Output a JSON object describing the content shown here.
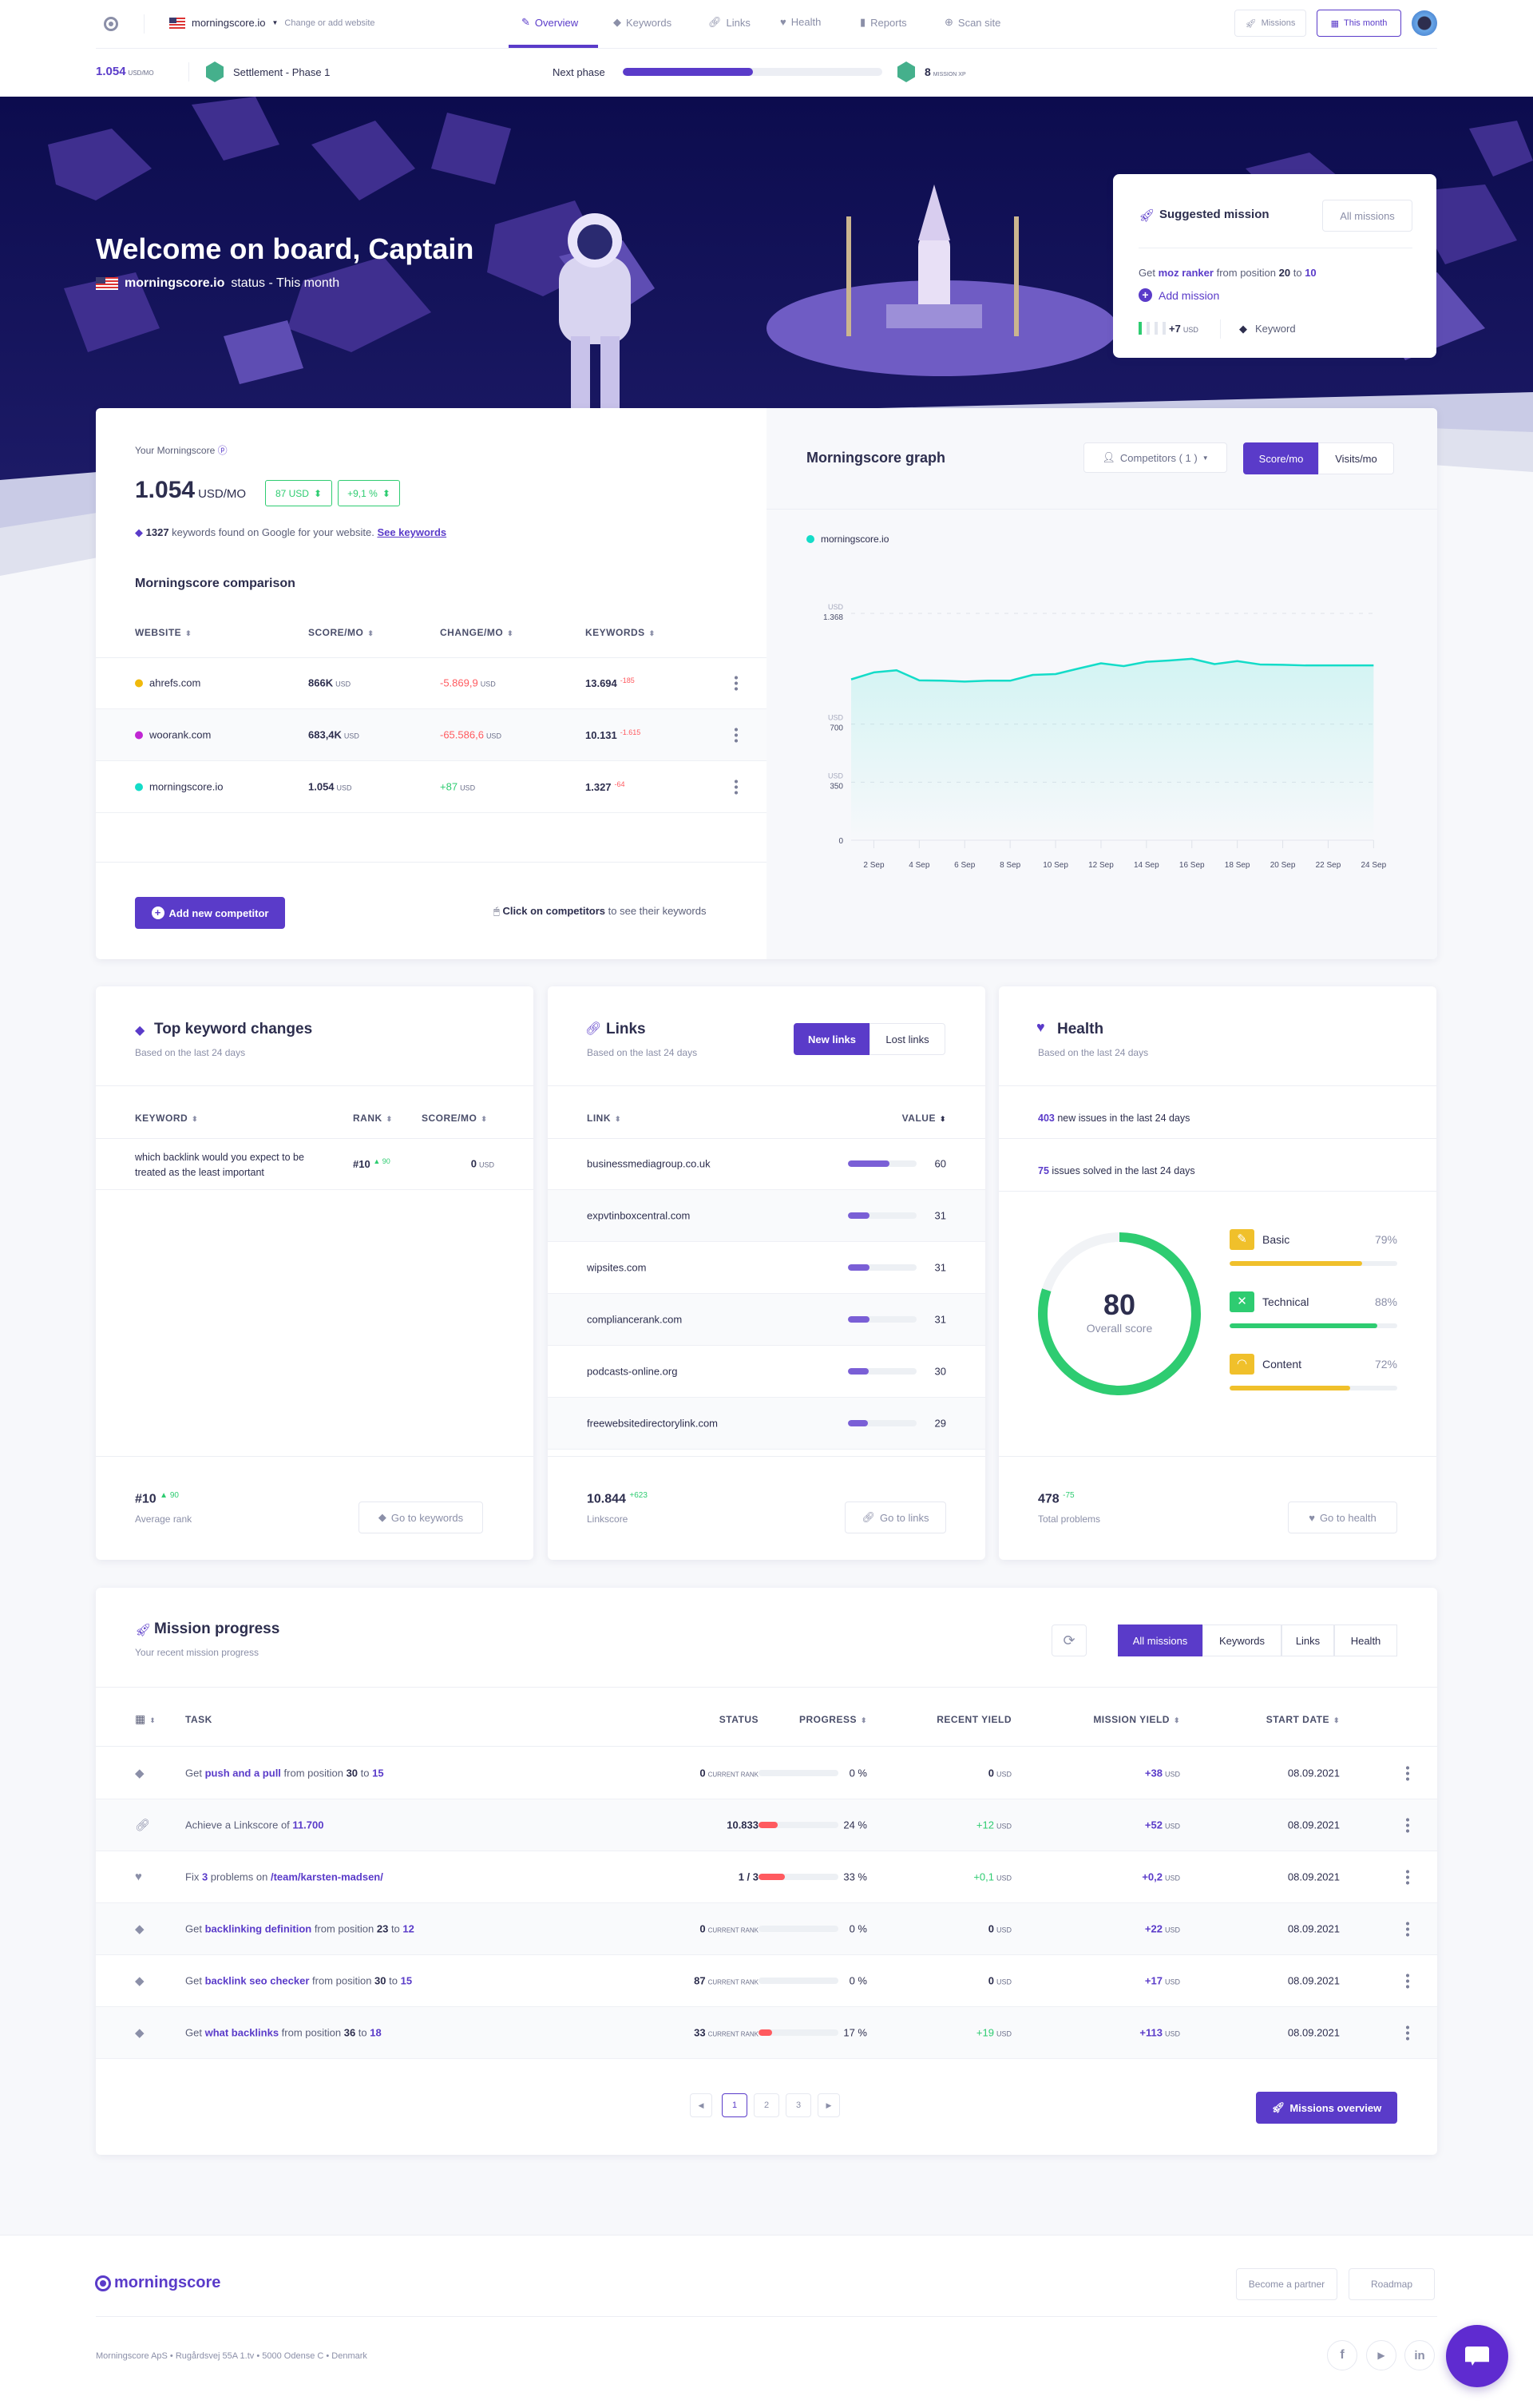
{
  "topbar": {
    "site": "morningscore.io",
    "change_site": "Change or add website",
    "tabs": [
      {
        "label": "Overview",
        "icon": "pencil-icon",
        "active": true
      },
      {
        "label": "Keywords",
        "icon": "tag-icon"
      },
      {
        "label": "Links",
        "icon": "link-icon"
      },
      {
        "label": "Health",
        "icon": "heart-icon"
      },
      {
        "label": "Reports",
        "icon": "report-icon"
      },
      {
        "label": "Scan site",
        "icon": "globe-icon"
      }
    ],
    "missions_label": "Missions",
    "period_label": "This month"
  },
  "statusbar": {
    "score": "1.054",
    "score_unit": "USD/MO",
    "phase": "Settlement - Phase 1",
    "next_phase_label": "Next phase",
    "next_phase_progress": 0.5,
    "xp": "8",
    "xp_unit": "MISSION XP"
  },
  "hero": {
    "title": "Welcome on board, Captain",
    "site": "morningscore.io",
    "status_text": "status - This month"
  },
  "suggested": {
    "title": "Suggested mission",
    "all_label": "All missions",
    "text_prefix": "Get",
    "keyword": "moz ranker",
    "text_mid": "from position",
    "from": "20",
    "to_word": "to",
    "to": "10",
    "add_label": "Add mission",
    "yield": "+7",
    "yield_unit": "USD",
    "type": "Keyword"
  },
  "score": {
    "label": "Your Morningscore",
    "value": "1.054",
    "unit": "USD/MO",
    "delta_usd": "87 USD",
    "delta_pct": "+9,1 %",
    "keywords_count": "1327",
    "keywords_text": "keywords found on Google for your website.",
    "see_keywords": "See keywords",
    "comparison_title": "Morningscore comparison",
    "columns": [
      "Website",
      "Score/mo",
      "Change/mo",
      "Keywords"
    ],
    "rows": [
      {
        "site": "ahrefs.com",
        "color": "#f0b90b",
        "score": "866K",
        "change": "-5.869,9",
        "change_dir": "down",
        "keywords": "13.694",
        "kw_delta": "-185"
      },
      {
        "site": "woorank.com",
        "color": "#c026d3",
        "score": "683,4K",
        "change": "-65.586,6",
        "change_dir": "down",
        "keywords": "10.131",
        "kw_delta": "-1.615"
      },
      {
        "site": "morningscore.io",
        "color": "#14dcc8",
        "score": "1.054",
        "change": "+87",
        "change_dir": "up",
        "keywords": "1.327",
        "kw_delta": "-64"
      }
    ],
    "unit_usd": "USD",
    "add_competitor": "Add new competitor",
    "hint_bold": "Click on competitors",
    "hint_rest": "to see their keywords"
  },
  "graph": {
    "title": "Morningscore graph",
    "competitors": "Competitors ( 1 )",
    "toggle": [
      "Score/mo",
      "Visits/mo"
    ],
    "active_toggle": 0
  },
  "chart_data": {
    "type": "area",
    "series": [
      {
        "name": "morningscore.io",
        "color": "#14dcc8",
        "x": [
          "1 Sep",
          "2 Sep",
          "3 Sep",
          "4 Sep",
          "5 Sep",
          "6 Sep",
          "7 Sep",
          "8 Sep",
          "9 Sep",
          "10 Sep",
          "11 Sep",
          "12 Sep",
          "13 Sep",
          "14 Sep",
          "15 Sep",
          "16 Sep",
          "17 Sep",
          "18 Sep",
          "19 Sep",
          "20 Sep",
          "21 Sep",
          "22 Sep",
          "23 Sep",
          "24 Sep"
        ],
        "values": [
          970,
          1012,
          1025,
          964,
          962,
          957,
          962,
          962,
          997,
          1002,
          1035,
          1067,
          1050,
          1076,
          1084,
          1094,
          1062,
          1080,
          1060,
          1058,
          1054,
          1054,
          1054,
          1054
        ]
      }
    ],
    "x_tick_labels": [
      "2 Sep",
      "4 Sep",
      "6 Sep",
      "8 Sep",
      "10 Sep",
      "12 Sep",
      "14 Sep",
      "16 Sep",
      "18 Sep",
      "20 Sep",
      "22 Sep",
      "24 Sep"
    ],
    "y_ticks": [
      {
        "value": 0,
        "label": "0",
        "unit": ""
      },
      {
        "value": 350,
        "label": "350",
        "unit": "USD"
      },
      {
        "value": 700,
        "label": "700",
        "unit": "USD"
      },
      {
        "value": 1368,
        "label": "1.368",
        "unit": "USD"
      }
    ],
    "ylim": [
      0,
      1368
    ],
    "grid": true,
    "legend": "top-left"
  },
  "keywords_card": {
    "title": "Top keyword changes",
    "subtitle": "Based on the last 24 days",
    "columns": [
      "Keyword",
      "Rank",
      "Score/mo"
    ],
    "rows": [
      {
        "keyword": "which backlink would you expect to be treated as the least important",
        "rank": "#10",
        "rank_delta": "90",
        "score": "0",
        "unit": "USD"
      }
    ],
    "avg_rank": "#10",
    "avg_delta": "90",
    "avg_label": "Average rank",
    "button": "Go to keywords"
  },
  "links_card": {
    "title": "Links",
    "subtitle": "Based on the last 24 days",
    "tabs": [
      "New links",
      "Lost links"
    ],
    "columns": [
      "Link",
      "Value"
    ],
    "rows": [
      {
        "link": "businessmediagroup.co.uk",
        "value": "60"
      },
      {
        "link": "expvtinboxcentral.com",
        "value": "31"
      },
      {
        "link": "wipsites.com",
        "value": "31"
      },
      {
        "link": "compliancerank.com",
        "value": "31"
      },
      {
        "link": "podcasts-online.org",
        "value": "30"
      },
      {
        "link": "freewebsitedirectorylink.com",
        "value": "29"
      }
    ],
    "linkscore": "10.844",
    "linkscore_delta": "+623",
    "linkscore_label": "Linkscore",
    "button": "Go to links"
  },
  "health_card": {
    "title": "Health",
    "subtitle": "Based on the last 24 days",
    "new_issues": "403",
    "new_issues_text": "new issues in the last 24 days",
    "solved": "75",
    "solved_text": "issues solved in the last 24 days",
    "overall": "80",
    "overall_label": "Overall score",
    "categories": [
      {
        "label": "Basic",
        "pct": "79%",
        "value": 79,
        "color": "#f0c02b",
        "icon": "pencil-icon"
      },
      {
        "label": "Technical",
        "pct": "88%",
        "value": 88,
        "color": "#2ecc71",
        "icon": "tools-icon"
      },
      {
        "label": "Content",
        "pct": "72%",
        "value": 72,
        "color": "#f0c02b",
        "icon": "gauge-icon"
      }
    ],
    "total": "478",
    "total_delta": "-75",
    "total_label": "Total problems",
    "button": "Go to health"
  },
  "missions": {
    "title": "Mission progress",
    "subtitle": "Your recent mission progress",
    "filters": [
      "All missions",
      "Keywords",
      "Links",
      "Health"
    ],
    "columns": [
      "Task",
      "Status",
      "Progress",
      "Recent yield",
      "Mission yield",
      "Start date"
    ],
    "rows": [
      {
        "icon": "tag",
        "task": [
          [
            "Get ",
            "n"
          ],
          [
            "push and a pull",
            "p"
          ],
          [
            " from position ",
            "n"
          ],
          [
            "30",
            "b"
          ],
          [
            " to ",
            "n"
          ],
          [
            "15",
            "p"
          ]
        ],
        "status": "0",
        "status_unit": "CURRENT RANK",
        "progress": 0,
        "progress_label": "0 %",
        "recent": "0",
        "recent_tone": "n",
        "mission": "+38",
        "date": "08.09.2021"
      },
      {
        "icon": "link",
        "task": [
          [
            "Achieve a Linkscore of ",
            "n"
          ],
          [
            "11.700",
            "p"
          ]
        ],
        "status": "10.833",
        "status_unit": "",
        "progress": 24,
        "progress_label": "24 %",
        "recent": "+12",
        "recent_tone": "g",
        "mission": "+52",
        "date": "08.09.2021"
      },
      {
        "icon": "heart",
        "task": [
          [
            "Fix ",
            "n"
          ],
          [
            "3",
            "p"
          ],
          [
            " problems on ",
            "n"
          ],
          [
            "/team/karsten-madsen/",
            "p"
          ]
        ],
        "status": "1 / 3",
        "status_unit": "",
        "progress": 33,
        "progress_label": "33 %",
        "recent": "+0,1",
        "recent_tone": "g",
        "mission": "+0,2",
        "date": "08.09.2021"
      },
      {
        "icon": "tag",
        "task": [
          [
            "Get ",
            "n"
          ],
          [
            "backlinking definition",
            "p"
          ],
          [
            " from position ",
            "n"
          ],
          [
            "23",
            "b"
          ],
          [
            " to ",
            "n"
          ],
          [
            "12",
            "p"
          ]
        ],
        "status": "0",
        "status_unit": "CURRENT RANK",
        "progress": 0,
        "progress_label": "0 %",
        "recent": "0",
        "recent_tone": "n",
        "mission": "+22",
        "date": "08.09.2021"
      },
      {
        "icon": "tag",
        "task": [
          [
            "Get ",
            "n"
          ],
          [
            "backlink seo checker",
            "p"
          ],
          [
            " from position ",
            "n"
          ],
          [
            "30",
            "b"
          ],
          [
            " to ",
            "n"
          ],
          [
            "15",
            "p"
          ]
        ],
        "status": "87",
        "status_unit": "CURRENT RANK",
        "progress": 0,
        "progress_label": "0 %",
        "recent": "0",
        "recent_tone": "n",
        "mission": "+17",
        "date": "08.09.2021"
      },
      {
        "icon": "tag",
        "task": [
          [
            "Get ",
            "n"
          ],
          [
            "what backlinks",
            "p"
          ],
          [
            " from position ",
            "n"
          ],
          [
            "36",
            "b"
          ],
          [
            " to ",
            "n"
          ],
          [
            "18",
            "p"
          ]
        ],
        "status": "33",
        "status_unit": "CURRENT RANK",
        "progress": 17,
        "progress_label": "17 %",
        "recent": "+19",
        "recent_tone": "g",
        "mission": "+113",
        "date": "08.09.2021"
      }
    ],
    "unit": "USD",
    "pages": [
      "1",
      "2",
      "3"
    ],
    "current_page": "1",
    "overview_button": "Missions overview"
  },
  "footer": {
    "logo": "morningscore",
    "links": [
      "Become a partner",
      "Roadmap"
    ],
    "address": "Morningscore ApS • Rugårdsvej 55A 1.tv • 5000 Odense C • Denmark",
    "social": [
      "f",
      "▶",
      "in"
    ]
  },
  "colors": {
    "primary": "#5a3bc9",
    "positive": "#2ecc71",
    "negative": "#ff5a5f",
    "series": "#14dcc8",
    "hero": "#0c0c4e"
  }
}
